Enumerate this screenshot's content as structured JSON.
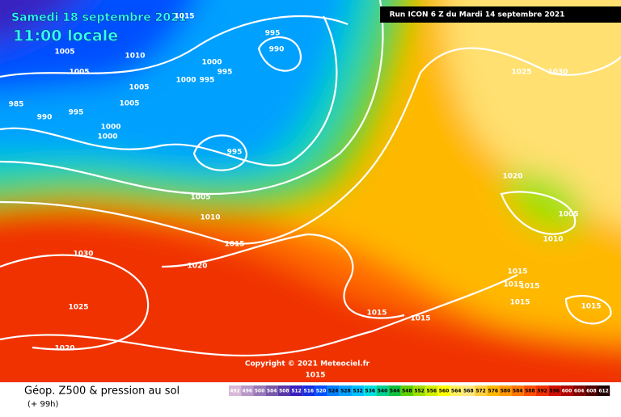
{
  "header": {
    "date": "Samedi 18 septembre 2021",
    "time": "11:00 locale",
    "run": "Run ICON 6 Z du Mardi 14 septembre 2021"
  },
  "copyright": "Copyright © 2021 Meteociel.fr",
  "isobar_labels": [
    1015,
    995,
    990,
    1005,
    1010,
    1000,
    995,
    1000,
    995,
    1005,
    1005,
    1005,
    985,
    990,
    995,
    1000,
    1000,
    995,
    1005,
    1010,
    1015,
    1020,
    1030,
    1025,
    1020,
    1025,
    1030,
    1020,
    1005,
    1010,
    1015,
    1015,
    1015,
    1015,
    1015,
    1015,
    1015,
    1015
  ],
  "legend": {
    "title": "Géop. Z500 & pression au sol",
    "lead": "(+ 99h)",
    "scale": [
      492,
      496,
      500,
      504,
      508,
      512,
      516,
      520,
      524,
      528,
      532,
      536,
      540,
      544,
      548,
      552,
      556,
      560,
      564,
      568,
      572,
      576,
      580,
      584,
      588,
      592,
      596,
      600,
      604,
      608,
      612
    ],
    "colors": [
      "#d8b8d8",
      "#b898c8",
      "#9878b8",
      "#7858a8",
      "#5838a8",
      "#3820c0",
      "#1830e0",
      "#0050ff",
      "#0080ff",
      "#00a0ff",
      "#00c0ff",
      "#00e0e0",
      "#00d090",
      "#10c040",
      "#60d000",
      "#a0e000",
      "#d0f000",
      "#ffff00",
      "#fff060",
      "#ffe880",
      "#ffd040",
      "#ffb800",
      "#ff9800",
      "#ff7800",
      "#ff5000",
      "#f03000",
      "#d01000",
      "#b00000",
      "#800000",
      "#500000",
      "#200000"
    ]
  }
}
